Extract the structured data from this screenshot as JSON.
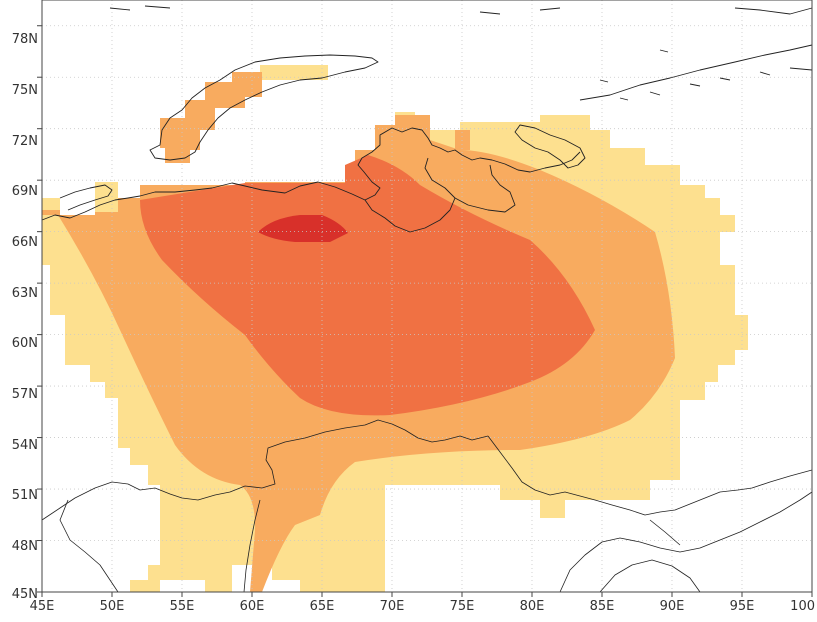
{
  "map": {
    "lon_labels": [
      "45E",
      "50E",
      "55E",
      "60E",
      "65E",
      "70E",
      "75E",
      "80E",
      "85E",
      "90E",
      "95E",
      "100"
    ],
    "lat_labels": [
      "78N",
      "75N",
      "72N",
      "69N",
      "66N",
      "63N",
      "60N",
      "57N",
      "54N",
      "51N",
      "48N",
      "45N"
    ],
    "extent": {
      "lon_min": 45,
      "lon_max": 100,
      "lat_min": 45,
      "lat_max": 79.5
    },
    "grid": "dotted",
    "projection": "equirectangular",
    "shading_colors": {
      "level_1": "#fde08f",
      "level_2": "#f8ab5f",
      "level_3": "#f07143",
      "level_4": "#d8302a"
    },
    "outline_color": "#222222"
  }
}
